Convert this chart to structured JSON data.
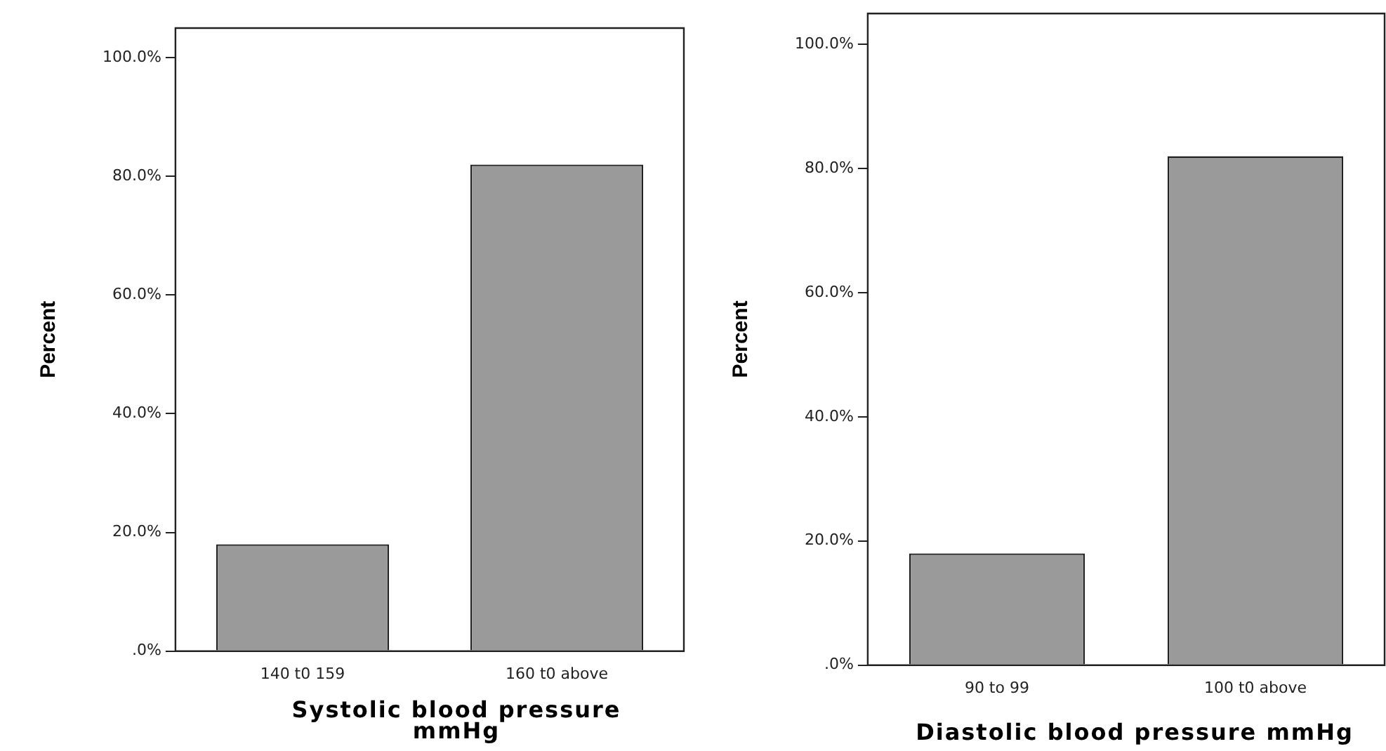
{
  "chart_data": [
    {
      "type": "bar",
      "categories": [
        "140 t0 159",
        "160 t0 above"
      ],
      "values": [
        18,
        82
      ],
      "color": "#9a9a9a",
      "xlabel": "Systolic blood pressure mmHg",
      "ylabel": "Percent",
      "ylim": [
        0,
        105
      ],
      "yticks": [
        {
          "value": 0,
          "label": ".0%"
        },
        {
          "value": 20,
          "label": "20.0%"
        },
        {
          "value": 40,
          "label": "40.0%"
        },
        {
          "value": 60,
          "label": "60.0%"
        },
        {
          "value": 80,
          "label": "80.0%"
        },
        {
          "value": 100,
          "label": "100.0%"
        }
      ],
      "grid": false,
      "legend": false
    },
    {
      "type": "bar",
      "categories": [
        "90 to 99",
        "100 t0 above"
      ],
      "values": [
        18,
        82
      ],
      "color": "#9a9a9a",
      "xlabel": "Diastolic blood pressure mmHg",
      "ylabel": "Percent",
      "ylim": [
        0,
        105
      ],
      "yticks": [
        {
          "value": 0,
          "label": ".0%"
        },
        {
          "value": 20,
          "label": "20.0%"
        },
        {
          "value": 40,
          "label": "40.0%"
        },
        {
          "value": 60,
          "label": "60.0%"
        },
        {
          "value": 80,
          "label": "80.0%"
        },
        {
          "value": 100,
          "label": "100.0%"
        }
      ],
      "grid": false,
      "legend": false
    }
  ]
}
